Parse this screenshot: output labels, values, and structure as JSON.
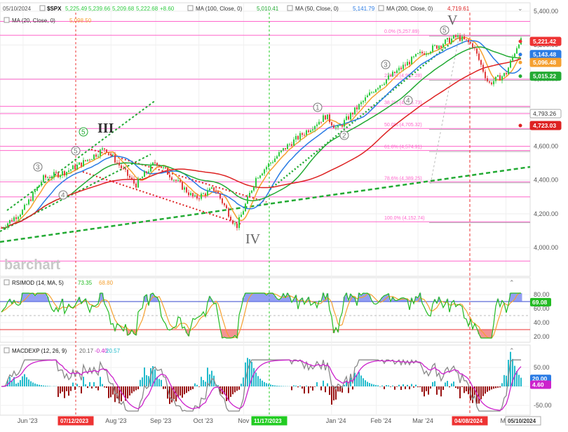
{
  "header": {
    "date": "05/10/2024",
    "symbol": "$SPX",
    "ohlc": "5,225.49",
    "ohlc_h": "5,239.66",
    "ohlc_l": "5,209.68",
    "ohlc_c": "5,222.68",
    "ohlc_chg": "+8.60",
    "ma100_label": "MA (100, Close, 0)",
    "ma100_val": "5,010.41",
    "ma50_label": "MA (50, Close, 0)",
    "ma50_val": "5,141.79",
    "ma200_label": "MA (200, Close, 0)",
    "ma200_val": "4,719.61",
    "ma20_label": "MA (20, Close, 0)",
    "ma20_val": "5,098.50"
  },
  "watermark": "barchart",
  "colors": {
    "up": "#2ecc40",
    "down": "#e03c3c",
    "ma20": "#f5a030",
    "ma50": "#2a7be4",
    "ma100": "#22aa33",
    "ma200": "#dd2222",
    "fib": "#ff66cc",
    "rsi": "#22bb22",
    "rsi_ma": "#f5a030",
    "macd": "#888888",
    "macd_sig": "#cc22cc",
    "hist_up": "#22bbcc",
    "hist_down": "#991111"
  },
  "price_axis": [
    "5,400.00",
    "5,200.00",
    "5,000.00",
    "4,800.00",
    "4,600.00",
    "4,400.00",
    "4,200.00",
    "4,000.00"
  ],
  "price_boxes": {
    "last": "5,221.42",
    "ma50": "5,143.48",
    "ma20": "5,096.48",
    "ma100": "5,015.22",
    "fib_mid": "4,793.26",
    "ma200": "4,723.03"
  },
  "fib_labels": [
    "0.0% (5,257.89)",
    "23.6% (4,997.28)",
    "38.2% (4,836.73)",
    "50.0% (4,705.32)",
    "61.8% (4,574.91)",
    "78.6% (4,389.25)",
    "100.0% (4,152.74)"
  ],
  "waves": {
    "w3_small": "3",
    "w4_small": "4",
    "w5_small": "5",
    "w5_circle": "5",
    "III": "III",
    "IV": "IV",
    "V": "V",
    "c1": "1",
    "c2": "2",
    "c3": "3",
    "c4": "4",
    "c5": "5"
  },
  "rsi": {
    "label": "RSIMOD (14, MA, 5)",
    "v1": "73.35",
    "v2": "68.80",
    "axis": [
      "80.00",
      "60.00",
      "40.00",
      "20.00"
    ],
    "box": "69.08"
  },
  "macd": {
    "label": "MACDEXP (12, 26, 9)",
    "v1": "20.17",
    "v2": "-0.40",
    "v3": "20.57",
    "axis": [
      "50.00",
      "0.00",
      "-50.00"
    ],
    "box1": "20.00",
    "box2": "4.60"
  },
  "x_axis": [
    "Jun '23",
    "Aug '23",
    "Sep '23",
    "Oct '23",
    "Nov '23",
    "Jan '24",
    "Feb '24",
    "Mar '24",
    "Ma"
  ],
  "x_axis_highlights": [
    "07/12/2023",
    "11/17/2023",
    "04/08/2024",
    "05/10/2024"
  ],
  "chart_data": {
    "type": "candlestick",
    "title": "$SPX",
    "x_start": "2023-05-16",
    "x_end": "2024-05-10",
    "ylim": [
      3900,
      5450
    ],
    "close_path": [
      [
        "2023-05-16",
        4110
      ],
      [
        "2023-06-01",
        4220
      ],
      [
        "2023-06-15",
        4410
      ],
      [
        "2023-07-01",
        4450
      ],
      [
        "2023-07-12",
        4500
      ],
      [
        "2023-07-28",
        4590
      ],
      [
        "2023-08-18",
        4370
      ],
      [
        "2023-09-01",
        4510
      ],
      [
        "2023-09-28",
        4290
      ],
      [
        "2023-10-12",
        4350
      ],
      [
        "2023-10-27",
        4120
      ],
      [
        "2023-11-10",
        4420
      ],
      [
        "2023-12-01",
        4600
      ],
      [
        "2023-12-28",
        4780
      ],
      [
        "2024-01-05",
        4700
      ],
      [
        "2024-02-01",
        4950
      ],
      [
        "2024-03-01",
        5140
      ],
      [
        "2024-03-28",
        5250
      ],
      [
        "2024-04-08",
        5200
      ],
      [
        "2024-04-19",
        4970
      ],
      [
        "2024-05-01",
        5030
      ],
      [
        "2024-05-10",
        5222
      ]
    ],
    "fib_levels": [
      5257.89,
      4997.28,
      4836.73,
      4705.32,
      4574.91,
      4389.25,
      4152.74
    ],
    "last_price": 5221.42,
    "ma_last": {
      "ma20": 5096.48,
      "ma50": 5143.48,
      "ma100": 5015.22,
      "ma200": 4723.03
    },
    "rsi_last": 69.08,
    "macd_last": {
      "macd": 20.0,
      "signal": 4.6
    }
  }
}
